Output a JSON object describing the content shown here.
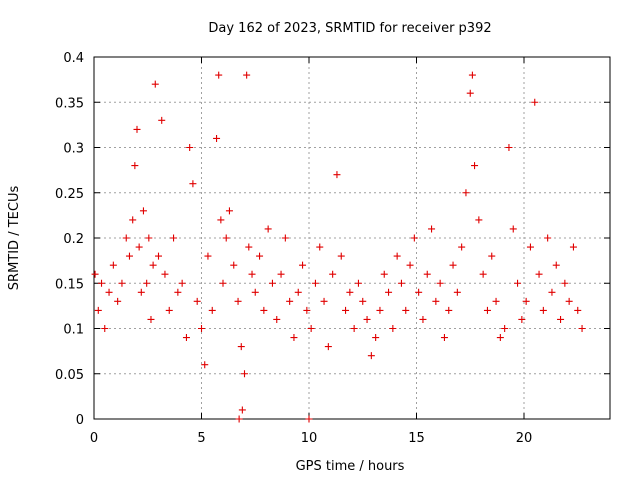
{
  "chart_data": {
    "type": "scatter",
    "title": "Day 162 of 2023, SRMTID for receiver p392",
    "xlabel": "GPS time / hours",
    "ylabel": "SRMTID / TECUs",
    "xlim": [
      0,
      24
    ],
    "ylim": [
      0,
      0.4
    ],
    "x_ticks": [
      0,
      5,
      10,
      15,
      20
    ],
    "x_tick_labels": [
      "0",
      "5",
      "10",
      "15",
      "20"
    ],
    "y_ticks": [
      0,
      0.05,
      0.1,
      0.15,
      0.2,
      0.25,
      0.3,
      0.35,
      0.4
    ],
    "y_tick_labels": [
      "0",
      "0.05",
      "0.1",
      "0.15",
      "0.2",
      "0.25",
      "0.3",
      "0.35",
      "0.4"
    ],
    "grid": true,
    "marker": "+",
    "color": "#e00000",
    "series": [
      {
        "name": "SRMTID",
        "x": [
          0.05,
          0.2,
          0.35,
          0.5,
          0.7,
          0.9,
          1.1,
          1.3,
          1.5,
          1.65,
          1.8,
          1.9,
          2.0,
          2.1,
          2.2,
          2.3,
          2.45,
          2.55,
          2.65,
          2.75,
          2.85,
          3.0,
          3.15,
          3.3,
          3.5,
          3.7,
          3.9,
          4.1,
          4.3,
          4.45,
          4.6,
          4.8,
          5.0,
          5.15,
          5.3,
          5.5,
          5.7,
          5.8,
          5.9,
          6.0,
          6.15,
          6.3,
          6.5,
          6.7,
          6.85,
          7.0,
          7.1,
          7.2,
          7.35,
          7.5,
          7.7,
          7.9,
          8.1,
          8.3,
          8.5,
          8.7,
          8.9,
          9.1,
          9.3,
          9.5,
          9.7,
          9.9,
          10.1,
          10.3,
          10.5,
          10.7,
          10.9,
          11.1,
          11.3,
          11.5,
          11.7,
          11.9,
          12.1,
          12.3,
          12.5,
          12.7,
          12.9,
          13.1,
          13.3,
          13.5,
          13.7,
          13.9,
          14.1,
          14.3,
          14.5,
          14.7,
          14.9,
          15.1,
          15.3,
          15.5,
          15.7,
          15.9,
          16.1,
          16.3,
          16.5,
          16.7,
          16.9,
          17.1,
          17.3,
          17.5,
          17.6,
          17.7,
          17.9,
          18.1,
          18.3,
          18.5,
          18.7,
          18.9,
          19.1,
          19.3,
          19.5,
          19.7,
          19.9,
          20.1,
          20.3,
          20.5,
          20.7,
          20.9,
          21.1,
          21.3,
          21.5,
          21.7,
          21.9,
          22.1,
          22.3,
          22.5,
          22.7,
          6.75,
          6.9,
          10.0
        ],
        "y": [
          0.16,
          0.12,
          0.15,
          0.1,
          0.14,
          0.17,
          0.13,
          0.15,
          0.2,
          0.18,
          0.22,
          0.28,
          0.32,
          0.19,
          0.14,
          0.23,
          0.15,
          0.2,
          0.11,
          0.17,
          0.37,
          0.18,
          0.33,
          0.16,
          0.12,
          0.2,
          0.14,
          0.15,
          0.09,
          0.3,
          0.26,
          0.13,
          0.1,
          0.06,
          0.18,
          0.12,
          0.31,
          0.38,
          0.22,
          0.15,
          0.2,
          0.23,
          0.17,
          0.13,
          0.08,
          0.05,
          0.38,
          0.19,
          0.16,
          0.14,
          0.18,
          0.12,
          0.21,
          0.15,
          0.11,
          0.16,
          0.2,
          0.13,
          0.09,
          0.14,
          0.17,
          0.12,
          0.1,
          0.15,
          0.19,
          0.13,
          0.08,
          0.16,
          0.27,
          0.18,
          0.12,
          0.14,
          0.1,
          0.15,
          0.13,
          0.11,
          0.07,
          0.09,
          0.12,
          0.16,
          0.14,
          0.1,
          0.18,
          0.15,
          0.12,
          0.17,
          0.2,
          0.14,
          0.11,
          0.16,
          0.21,
          0.13,
          0.15,
          0.09,
          0.12,
          0.17,
          0.14,
          0.19,
          0.25,
          0.36,
          0.38,
          0.28,
          0.22,
          0.16,
          0.12,
          0.18,
          0.13,
          0.09,
          0.1,
          0.3,
          0.21,
          0.15,
          0.11,
          0.13,
          0.19,
          0.35,
          0.16,
          0.12,
          0.2,
          0.14,
          0.17,
          0.11,
          0.15,
          0.13,
          0.19,
          0.12,
          0.1,
          0.0,
          0.01,
          0.0
        ]
      }
    ]
  }
}
